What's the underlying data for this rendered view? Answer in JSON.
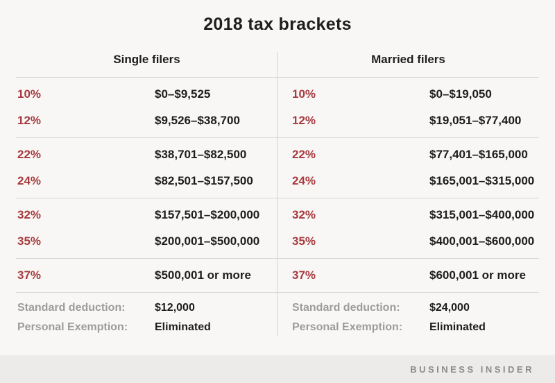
{
  "title": "2018 tax brackets",
  "chart_data": {
    "type": "table",
    "title": "2018 tax brackets",
    "column_headers": [
      "Single filers",
      "Married filers"
    ],
    "rows": [
      {
        "rate": "10%",
        "single": "$0–$9,525",
        "married": "$0–$19,050"
      },
      {
        "rate": "12%",
        "single": "$9,526–$38,700",
        "married": "$19,051–$77,400"
      },
      {
        "rate": "22%",
        "single": "$38,701–$82,500",
        "married": "$77,401–$165,000"
      },
      {
        "rate": "24%",
        "single": "$82,501–$157,500",
        "married": "$165,001–$315,000"
      },
      {
        "rate": "32%",
        "single": "$157,501–$200,000",
        "married": "$315,001–$400,000"
      },
      {
        "rate": "35%",
        "single": "$200,001–$500,000",
        "married": "$400,001–$600,000"
      },
      {
        "rate": "37%",
        "single": "$500,001 or more",
        "married": "$600,001 or more"
      }
    ],
    "standard_deduction": {
      "label": "Standard deduction:",
      "single": "$12,000",
      "married": "$24,000"
    },
    "personal_exemption": {
      "label": "Personal Exemption:",
      "single": "Eliminated",
      "married": "Eliminated"
    }
  },
  "footer": {
    "brand": "BUSINESS INSIDER"
  },
  "colors": {
    "rate_red": "#a63a3e",
    "text_dark": "#1d1d1d",
    "label_gray": "#9d9c9a",
    "divider": "#d9d8d6",
    "background": "#f8f7f5",
    "footer_background": "#ecebe9",
    "brand_gray": "#8b8b8b"
  }
}
